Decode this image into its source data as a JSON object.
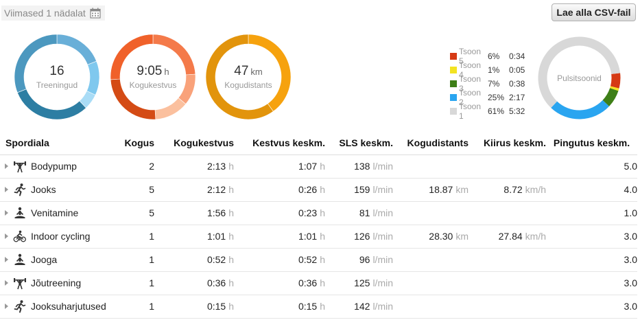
{
  "period": {
    "label": "Viimased 1 nädalat",
    "icon": "calendar-icon"
  },
  "csv_button": {
    "label": "Lae alla CSV-fail"
  },
  "summary": [
    {
      "value": "16",
      "unit": "",
      "label": "Treeningud",
      "segments": [
        {
          "fraction": 0.19,
          "color": "#69afd8"
        },
        {
          "fraction": 0.13,
          "color": "#7fc8ee"
        },
        {
          "fraction": 0.06,
          "color": "#a9dcf6"
        },
        {
          "fraction": 0.31,
          "color": "#2d7ea3"
        },
        {
          "fraction": 0.31,
          "color": "#4c98bf"
        }
      ]
    },
    {
      "value": "9:05",
      "unit": "h",
      "label": "Kogukestvus",
      "segments": [
        {
          "fraction": 0.24,
          "color": "#f47a4a"
        },
        {
          "fraction": 0.12,
          "color": "#f9a27a"
        },
        {
          "fraction": 0.13,
          "color": "#fbc09e"
        },
        {
          "fraction": 0.25,
          "color": "#d44b15"
        },
        {
          "fraction": 0.26,
          "color": "#f0612a"
        }
      ]
    },
    {
      "value": "47",
      "unit": "km",
      "label": "Kogudistants",
      "segments": [
        {
          "fraction": 0.4,
          "color": "#f6a20e"
        },
        {
          "fraction": 0.6,
          "color": "#e2940c"
        }
      ]
    }
  ],
  "zones": {
    "label": "Pulsitsoonid",
    "items": [
      {
        "name": "Tsoon 5",
        "pct": "6%",
        "time": "0:34",
        "color": "#d63a14",
        "fraction": 0.06
      },
      {
        "name": "Tsoon 4",
        "pct": "1%",
        "time": "0:05",
        "color": "#f3e322",
        "fraction": 0.01
      },
      {
        "name": "Tsoon 3",
        "pct": "7%",
        "time": "0:38",
        "color": "#3e7f17",
        "fraction": 0.07
      },
      {
        "name": "Tsoon 2",
        "pct": "25%",
        "time": "2:17",
        "color": "#2aa5f0",
        "fraction": 0.25
      },
      {
        "name": "Tsoon 1",
        "pct": "61%",
        "time": "5:32",
        "color": "#d8d8d8",
        "fraction": 0.61
      }
    ]
  },
  "table": {
    "headers": [
      "Spordiala",
      "Kogus",
      "Kogukestvus",
      "Kestvus keskm.",
      "SLS keskm.",
      "Kogudistants",
      "Kiirus keskm.",
      "Pingutus keskm."
    ],
    "units": {
      "duration": "h",
      "hr": "l/min",
      "distance": "km",
      "speed": "km/h"
    },
    "rows": [
      {
        "icon": "weightlifting-icon",
        "name": "Bodypump",
        "count": "2",
        "total": "2:13",
        "avg": "1:07",
        "hr": "138",
        "dist": "",
        "speed": "",
        "effort": "5.0"
      },
      {
        "icon": "running-icon",
        "name": "Jooks",
        "count": "5",
        "total": "2:12",
        "avg": "0:26",
        "hr": "159",
        "dist": "18.87",
        "speed": "8.72",
        "effort": "4.0"
      },
      {
        "icon": "stretching-icon",
        "name": "Venitamine",
        "count": "5",
        "total": "1:56",
        "avg": "0:23",
        "hr": "81",
        "dist": "",
        "speed": "",
        "effort": "1.0"
      },
      {
        "icon": "cycling-icon",
        "name": "Indoor cycling",
        "count": "1",
        "total": "1:01",
        "avg": "1:01",
        "hr": "126",
        "dist": "28.30",
        "speed": "27.84",
        "effort": "3.0"
      },
      {
        "icon": "yoga-icon",
        "name": "Jooga",
        "count": "1",
        "total": "0:52",
        "avg": "0:52",
        "hr": "96",
        "dist": "",
        "speed": "",
        "effort": "3.0"
      },
      {
        "icon": "weightlifting-icon",
        "name": "Jõutreening",
        "count": "1",
        "total": "0:36",
        "avg": "0:36",
        "hr": "125",
        "dist": "",
        "speed": "",
        "effort": "3.0"
      },
      {
        "icon": "running-icon",
        "name": "Jooksuharjutused",
        "count": "1",
        "total": "0:15",
        "avg": "0:15",
        "hr": "142",
        "dist": "",
        "speed": "",
        "effort": "3.0"
      }
    ]
  }
}
